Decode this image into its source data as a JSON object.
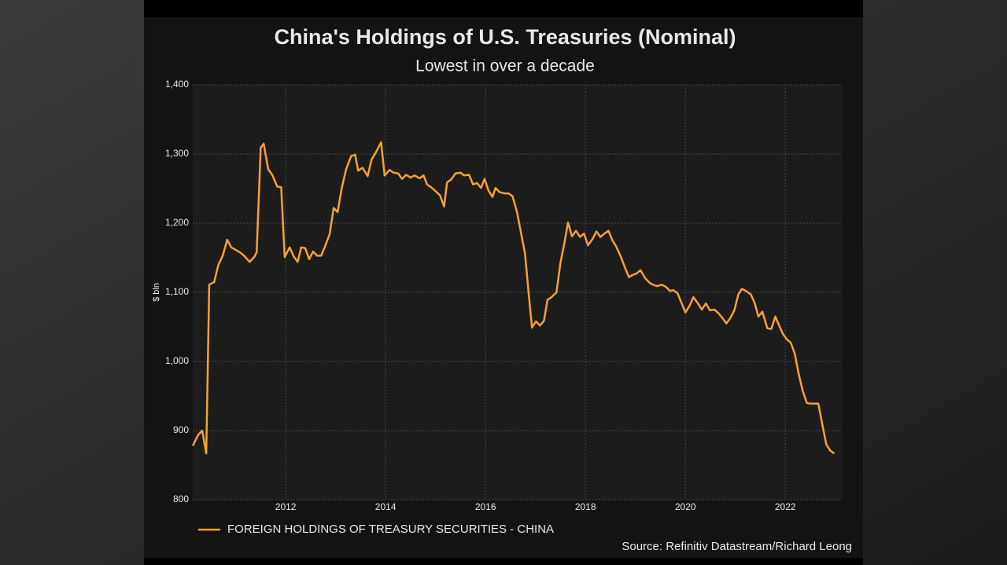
{
  "chart_data": {
    "type": "line",
    "title": "China's Holdings of U.S. Treasuries (Nominal)",
    "subtitle": "Lowest in over a decade",
    "y_label": "$ bln",
    "source": "Source: Refinitiv Datastream/Richard Leong",
    "xlim": [
      2010.14,
      2023.13
    ],
    "xticks": [
      2012,
      2014,
      2016,
      2018,
      2020,
      2022
    ],
    "ylim": [
      800,
      1400
    ],
    "yticks": [
      {
        "value": 800,
        "label": "800"
      },
      {
        "value": 900,
        "label": "900"
      },
      {
        "value": 1000,
        "label": "1,000"
      },
      {
        "value": 1100,
        "label": "1,100"
      },
      {
        "value": 1200,
        "label": "1,200"
      },
      {
        "value": 1300,
        "label": "1,300"
      },
      {
        "value": 1400,
        "label": "1,400"
      }
    ],
    "grid": true,
    "legend": "bottom-left",
    "x": [
      2010.14,
      2010.25,
      2010.33,
      2010.41,
      2010.47,
      2010.57,
      2010.65,
      2010.74,
      2010.83,
      2010.91,
      2011.01,
      2011.1,
      2011.18,
      2011.28,
      2011.37,
      2011.42,
      2011.5,
      2011.56,
      2011.65,
      2011.73,
      2011.83,
      2011.91,
      2011.98,
      2012.08,
      2012.16,
      2012.24,
      2012.31,
      2012.39,
      2012.47,
      2012.55,
      2012.63,
      2012.71,
      2012.79,
      2012.88,
      2012.96,
      2013.04,
      2013.12,
      2013.21,
      2013.31,
      2013.39,
      2013.45,
      2013.54,
      2013.64,
      2013.72,
      2013.81,
      2013.91,
      2013.98,
      2014.08,
      2014.16,
      2014.25,
      2014.33,
      2014.41,
      2014.5,
      2014.58,
      2014.68,
      2014.76,
      2014.83,
      2014.91,
      2014.99,
      2015.09,
      2015.17,
      2015.23,
      2015.31,
      2015.4,
      2015.5,
      2015.57,
      2015.67,
      2015.75,
      2015.83,
      2015.91,
      2015.98,
      2016.06,
      2016.14,
      2016.2,
      2016.28,
      2016.38,
      2016.46,
      2016.54,
      2016.63,
      2016.71,
      2016.79,
      2016.87,
      2016.93,
      2017.01,
      2017.09,
      2017.17,
      2017.24,
      2017.32,
      2017.42,
      2017.5,
      2017.57,
      2017.65,
      2017.73,
      2017.81,
      2017.89,
      2017.97,
      2018.05,
      2018.14,
      2018.22,
      2018.3,
      2018.38,
      2018.46,
      2018.54,
      2018.61,
      2018.71,
      2018.79,
      2018.87,
      2018.94,
      2019.02,
      2019.1,
      2019.2,
      2019.28,
      2019.35,
      2019.43,
      2019.53,
      2019.61,
      2019.69,
      2019.76,
      2019.84,
      2019.92,
      2020.0,
      2020.08,
      2020.16,
      2020.25,
      2020.33,
      2020.41,
      2020.49,
      2020.58,
      2020.66,
      2020.74,
      2020.82,
      2020.9,
      2020.98,
      2021.06,
      2021.13,
      2021.21,
      2021.31,
      2021.39,
      2021.46,
      2021.54,
      2021.64,
      2021.72,
      2021.8,
      2021.87,
      2021.95,
      2022.03,
      2022.11,
      2022.19,
      2022.27,
      2022.35,
      2022.43,
      2022.5,
      2022.58,
      2022.66,
      2022.74,
      2022.82,
      2022.9,
      2022.98
    ],
    "series": [
      {
        "name": "FOREIGN HOLDINGS OF TREASURY SECURITIES - CHINA",
        "color": "#f5a134",
        "values": [
          878,
          894,
          900,
          867,
          1111,
          1115,
          1139,
          1153,
          1176,
          1165,
          1161,
          1157,
          1152,
          1144,
          1151,
          1158,
          1309,
          1315,
          1278,
          1270,
          1253,
          1252,
          1151,
          1165,
          1152,
          1144,
          1165,
          1164,
          1148,
          1159,
          1153,
          1153,
          1167,
          1184,
          1222,
          1216,
          1250,
          1278,
          1297,
          1299,
          1276,
          1280,
          1268,
          1292,
          1303,
          1317,
          1269,
          1277,
          1273,
          1272,
          1264,
          1270,
          1266,
          1269,
          1265,
          1269,
          1256,
          1252,
          1247,
          1240,
          1224,
          1259,
          1263,
          1272,
          1273,
          1269,
          1270,
          1256,
          1258,
          1251,
          1264,
          1247,
          1238,
          1251,
          1245,
          1243,
          1243,
          1239,
          1216,
          1186,
          1156,
          1093,
          1049,
          1058,
          1052,
          1059,
          1089,
          1093,
          1100,
          1143,
          1168,
          1201,
          1181,
          1189,
          1180,
          1185,
          1168,
          1177,
          1188,
          1180,
          1185,
          1189,
          1175,
          1167,
          1151,
          1136,
          1122,
          1125,
          1127,
          1132,
          1120,
          1114,
          1111,
          1109,
          1111,
          1108,
          1102,
          1103,
          1099,
          1085,
          1071,
          1080,
          1093,
          1084,
          1075,
          1084,
          1074,
          1075,
          1070,
          1063,
          1055,
          1063,
          1074,
          1097,
          1105,
          1102,
          1097,
          1084,
          1065,
          1072,
          1048,
          1047,
          1065,
          1053,
          1040,
          1032,
          1027,
          1011,
          981,
          957,
          940,
          939,
          939,
          939,
          909,
          880,
          871,
          867
        ]
      }
    ]
  }
}
